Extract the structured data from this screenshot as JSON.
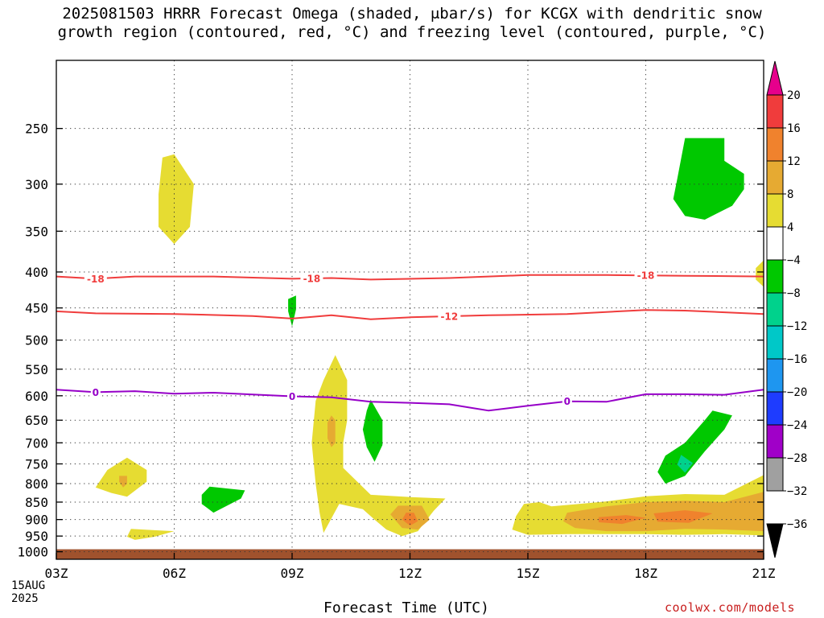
{
  "title": {
    "line1": "2025081503 HRRR Forecast Omega (shaded, μbar/s) for KCGX with dendritic snow",
    "line2": "growth region (contoured, red, °C) and freezing level (contoured, purple, °C)"
  },
  "xaxis_label": "Forecast Time (UTC)",
  "date_label": [
    "15AUG",
    "2025"
  ],
  "credit": "coolwx.com/models",
  "chart_data": {
    "type": "heatmap",
    "title": "2025081503 HRRR Forecast Omega (shaded, μbar/s) for KCGX with dendritic snow growth region (contoured, red, °C) and freezing level (contoured, purple, °C)",
    "xlabel": "Forecast Time (UTC)",
    "ylabel": "",
    "x_ticks": [
      {
        "hour": 0,
        "label": "03Z"
      },
      {
        "hour": 3,
        "label": "06Z"
      },
      {
        "hour": 6,
        "label": "09Z"
      },
      {
        "hour": 9,
        "label": "12Z"
      },
      {
        "hour": 12,
        "label": "15Z"
      },
      {
        "hour": 15,
        "label": "18Z"
      },
      {
        "hour": 18,
        "label": "21Z"
      }
    ],
    "xlim": [
      0,
      18
    ],
    "y_ticks": [
      250,
      300,
      350,
      400,
      450,
      500,
      550,
      600,
      650,
      700,
      750,
      800,
      850,
      900,
      950,
      1000
    ],
    "ylim": [
      1025,
      200
    ],
    "y_scale": "log",
    "grid": true,
    "colorbar": {
      "labels": [
        "20",
        "16",
        "12",
        "8",
        "4",
        "−4",
        "−8",
        "−12",
        "−16",
        "−20",
        "−24",
        "−28",
        "−32",
        "−36"
      ],
      "colors": [
        "#f03c3c",
        "#f0822d",
        "#e6aa32",
        "#e6dc32",
        "#ffffff",
        "#00c800",
        "#00d28c",
        "#00c8c8",
        "#1e96f0",
        "#1e3cff",
        "#a000c8",
        "#a0a0a0"
      ],
      "top_color": "#e6008c",
      "bottom_color": "#000000"
    },
    "surface": {
      "pressure": 992,
      "color": "#a0522d"
    },
    "contours": [
      {
        "name": "-18",
        "color": "#f03c3c",
        "labels": [
          {
            "hour": 1.0,
            "text": "-18"
          },
          {
            "hour": 6.5,
            "text": "-18"
          },
          {
            "hour": 15.0,
            "text": "-18"
          }
        ],
        "points": [
          [
            0,
            406
          ],
          [
            1,
            409
          ],
          [
            2,
            406
          ],
          [
            4,
            406
          ],
          [
            6,
            409
          ],
          [
            7,
            408
          ],
          [
            8,
            410
          ],
          [
            10,
            408
          ],
          [
            12,
            404
          ],
          [
            14,
            404
          ],
          [
            16,
            405
          ],
          [
            18,
            406
          ]
        ]
      },
      {
        "name": "-12",
        "color": "#f03c3c",
        "labels": [
          {
            "hour": 10.0,
            "text": "-12"
          }
        ],
        "points": [
          [
            0,
            455
          ],
          [
            1,
            458
          ],
          [
            3,
            459
          ],
          [
            5,
            462
          ],
          [
            6,
            466
          ],
          [
            7,
            461
          ],
          [
            8,
            467
          ],
          [
            9,
            464
          ],
          [
            11,
            461
          ],
          [
            13,
            459
          ],
          [
            15,
            453
          ],
          [
            16,
            454
          ],
          [
            18,
            459
          ]
        ]
      },
      {
        "name": "0",
        "color": "#9600c8",
        "labels": [
          {
            "hour": 1.0,
            "text": "0"
          },
          {
            "hour": 6.0,
            "text": "0"
          },
          {
            "hour": 13.0,
            "text": "0"
          }
        ],
        "points": [
          [
            0,
            588
          ],
          [
            1,
            593
          ],
          [
            2,
            591
          ],
          [
            3,
            596
          ],
          [
            4,
            594
          ],
          [
            6,
            601
          ],
          [
            7,
            603
          ],
          [
            8,
            612
          ],
          [
            9,
            614
          ],
          [
            10,
            617
          ],
          [
            11,
            630
          ],
          [
            12,
            620
          ],
          [
            13,
            611
          ],
          [
            14,
            612
          ],
          [
            15,
            597
          ],
          [
            16,
            597
          ],
          [
            17,
            598
          ],
          [
            18,
            588
          ]
        ]
      }
    ],
    "shaded_regions": [
      {
        "value": 4,
        "color": "#e6dc32",
        "points": [
          [
            2.6,
            310
          ],
          [
            2.7,
            275
          ],
          [
            3.0,
            272
          ],
          [
            3.5,
            300
          ],
          [
            3.4,
            345
          ],
          [
            3.0,
            365
          ],
          [
            2.6,
            345
          ]
        ]
      },
      {
        "value": -4,
        "color": "#00c800",
        "points": [
          [
            16.0,
            258
          ],
          [
            17.0,
            258
          ],
          [
            17.0,
            278
          ],
          [
            17.5,
            290
          ],
          [
            17.5,
            305
          ],
          [
            17.2,
            322
          ],
          [
            16.5,
            337
          ],
          [
            16.0,
            333
          ],
          [
            15.7,
            315
          ],
          [
            15.8,
            295
          ]
        ]
      },
      {
        "value": 4,
        "color": "#e6dc32",
        "points": [
          [
            18.0,
            385
          ],
          [
            18.0,
            420
          ],
          [
            17.8,
            410
          ],
          [
            17.8,
            395
          ]
        ]
      },
      {
        "value": -4,
        "color": "#00c800",
        "points": [
          [
            5.9,
            437
          ],
          [
            6.1,
            432
          ],
          [
            6.1,
            452
          ],
          [
            6.0,
            478
          ],
          [
            5.9,
            455
          ]
        ]
      },
      {
        "value": 4,
        "color": "#e6dc32",
        "points": [
          [
            7.1,
            525
          ],
          [
            7.4,
            570
          ],
          [
            7.4,
            650
          ],
          [
            7.3,
            700
          ],
          [
            7.3,
            760
          ],
          [
            8.0,
            830
          ],
          [
            9.0,
            836
          ],
          [
            9.9,
            840
          ],
          [
            9.6,
            875
          ],
          [
            9.2,
            935
          ],
          [
            8.8,
            950
          ],
          [
            8.4,
            930
          ],
          [
            8.1,
            900
          ],
          [
            7.8,
            870
          ],
          [
            7.2,
            855
          ],
          [
            6.8,
            940
          ],
          [
            6.7,
            880
          ],
          [
            6.6,
            800
          ],
          [
            6.5,
            700
          ],
          [
            6.6,
            610
          ],
          [
            6.8,
            570
          ]
        ]
      },
      {
        "value": 8,
        "color": "#e6aa32",
        "points": [
          [
            7.0,
            640
          ],
          [
            7.1,
            650
          ],
          [
            7.1,
            700
          ],
          [
            7.0,
            710
          ],
          [
            6.9,
            690
          ],
          [
            6.9,
            655
          ]
        ]
      },
      {
        "value": 8,
        "color": "#e6aa32",
        "points": [
          [
            8.7,
            860
          ],
          [
            9.3,
            860
          ],
          [
            9.5,
            900
          ],
          [
            9.2,
            930
          ],
          [
            8.8,
            925
          ],
          [
            8.5,
            885
          ]
        ]
      },
      {
        "value": 12,
        "color": "#f0822d",
        "points": [
          [
            8.9,
            880
          ],
          [
            9.1,
            880
          ],
          [
            9.2,
            905
          ],
          [
            9.0,
            918
          ],
          [
            8.8,
            900
          ]
        ]
      },
      {
        "value": -4,
        "color": "#00c800",
        "points": [
          [
            8.0,
            608
          ],
          [
            8.3,
            650
          ],
          [
            8.3,
            705
          ],
          [
            8.1,
            745
          ],
          [
            7.9,
            710
          ],
          [
            7.8,
            670
          ],
          [
            7.9,
            630
          ]
        ]
      },
      {
        "value": 4,
        "color": "#e6dc32",
        "points": [
          [
            1.3,
            765
          ],
          [
            1.8,
            735
          ],
          [
            2.3,
            765
          ],
          [
            2.3,
            795
          ],
          [
            1.8,
            835
          ],
          [
            1.4,
            825
          ],
          [
            1.0,
            810
          ]
        ]
      },
      {
        "value": 8,
        "color": "#e6aa32",
        "points": [
          [
            1.6,
            780
          ],
          [
            1.8,
            780
          ],
          [
            1.8,
            800
          ],
          [
            1.7,
            810
          ],
          [
            1.6,
            795
          ]
        ]
      },
      {
        "value": 4,
        "color": "#e6dc32",
        "points": [
          [
            1.9,
            928
          ],
          [
            2.5,
            932
          ],
          [
            3.0,
            935
          ],
          [
            2.5,
            952
          ],
          [
            2.0,
            962
          ],
          [
            1.8,
            952
          ]
        ]
      },
      {
        "value": -4,
        "color": "#00c800",
        "points": [
          [
            3.9,
            808
          ],
          [
            4.8,
            818
          ],
          [
            4.7,
            840
          ],
          [
            4.0,
            880
          ],
          [
            3.7,
            855
          ],
          [
            3.7,
            830
          ]
        ]
      },
      {
        "value": -4,
        "color": "#00c800",
        "points": [
          [
            16.7,
            630
          ],
          [
            17.2,
            640
          ],
          [
            17.0,
            670
          ],
          [
            16.5,
            720
          ],
          [
            16.0,
            780
          ],
          [
            15.5,
            800
          ],
          [
            15.3,
            770
          ],
          [
            15.5,
            730
          ],
          [
            16.0,
            700
          ],
          [
            16.5,
            650
          ]
        ]
      },
      {
        "value": -8,
        "color": "#00d28c",
        "points": [
          [
            15.9,
            728
          ],
          [
            16.2,
            748
          ],
          [
            16.0,
            772
          ],
          [
            15.8,
            752
          ]
        ]
      },
      {
        "value": 4,
        "color": "#e6dc32",
        "points": [
          [
            11.9,
            855
          ],
          [
            12.3,
            850
          ],
          [
            12.6,
            862
          ],
          [
            13.3,
            855
          ],
          [
            14.0,
            848
          ],
          [
            15.0,
            834
          ],
          [
            16.0,
            828
          ],
          [
            17.0,
            830
          ],
          [
            18.0,
            778
          ],
          [
            18.0,
            948
          ],
          [
            17.0,
            944
          ],
          [
            16.0,
            946
          ],
          [
            15.0,
            944
          ],
          [
            14.0,
            944
          ],
          [
            13.0,
            944
          ],
          [
            12.0,
            946
          ],
          [
            11.6,
            930
          ],
          [
            11.7,
            890
          ]
        ]
      },
      {
        "value": 8,
        "color": "#e6aa32",
        "points": [
          [
            13.0,
            880
          ],
          [
            14.0,
            862
          ],
          [
            15.0,
            850
          ],
          [
            16.0,
            846
          ],
          [
            17.0,
            850
          ],
          [
            18.0,
            822
          ],
          [
            18.0,
            935
          ],
          [
            17.0,
            930
          ],
          [
            16.0,
            928
          ],
          [
            15.0,
            935
          ],
          [
            14.0,
            935
          ],
          [
            13.2,
            925
          ],
          [
            12.9,
            905
          ]
        ]
      },
      {
        "value": 12,
        "color": "#f0822d",
        "points": [
          [
            13.8,
            893
          ],
          [
            14.5,
            887
          ],
          [
            15.0,
            895
          ],
          [
            14.4,
            913
          ],
          [
            13.8,
            908
          ]
        ]
      },
      {
        "value": 12,
        "color": "#f0822d",
        "points": [
          [
            15.2,
            882
          ],
          [
            16.0,
            873
          ],
          [
            16.7,
            882
          ],
          [
            16.1,
            910
          ],
          [
            15.3,
            906
          ]
        ]
      }
    ]
  }
}
